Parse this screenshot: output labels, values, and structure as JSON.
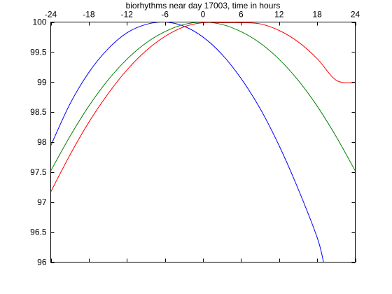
{
  "chart_data": {
    "type": "line",
    "title": "biorhythms near day 17003, time in hours",
    "xlabel": "",
    "ylabel": "",
    "xlim": [
      -24,
      24
    ],
    "ylim": [
      96,
      100
    ],
    "x_ticks": [
      -24,
      -18,
      -12,
      -6,
      0,
      6,
      12,
      18,
      24
    ],
    "x_tick_labels": [
      "-24",
      "-18",
      "-12",
      "-6",
      "0",
      "6",
      "12",
      "18",
      "24"
    ],
    "x_axis_position": "top",
    "y_ticks": [
      96,
      96.5,
      97,
      97.5,
      98,
      98.5,
      99,
      99.5,
      100
    ],
    "y_tick_labels": [
      "96",
      "96.5",
      "97",
      "97.5",
      "98",
      "98.5",
      "99",
      "99.5",
      "100"
    ],
    "grid": false,
    "legend": "none",
    "series": [
      {
        "color": "#0000ff",
        "x": [
          -24,
          -21,
          -18,
          -15,
          -12,
          -9,
          -6,
          -3,
          0,
          3,
          6,
          9,
          12,
          15,
          18,
          19
        ],
        "y": [
          97.94,
          98.63,
          99.16,
          99.55,
          99.82,
          99.96,
          100.0,
          99.93,
          99.75,
          99.46,
          99.06,
          98.56,
          97.94,
          97.22,
          96.41,
          96.0
        ]
      },
      {
        "color": "#008000",
        "x": [
          -24,
          -21,
          -18,
          -15,
          -12,
          -9,
          -6,
          -3,
          0,
          3,
          6,
          9,
          12,
          15,
          18,
          21,
          24
        ],
        "y": [
          97.52,
          98.09,
          98.6,
          99.03,
          99.38,
          99.65,
          99.84,
          99.96,
          100.0,
          99.96,
          99.84,
          99.65,
          99.38,
          99.03,
          98.6,
          98.09,
          97.52
        ]
      },
      {
        "color": "#ff0000",
        "x": [
          -24,
          -21,
          -18,
          -15,
          -12,
          -9,
          -6,
          -3,
          0,
          3,
          6,
          9,
          12,
          15,
          18,
          21,
          24
        ],
        "y": [
          97.17,
          97.78,
          98.33,
          98.8,
          99.2,
          99.52,
          99.76,
          99.92,
          99.99,
          99.99,
          99.99,
          99.97,
          99.86,
          99.67,
          99.39,
          99.03,
          98.99
        ]
      }
    ]
  }
}
